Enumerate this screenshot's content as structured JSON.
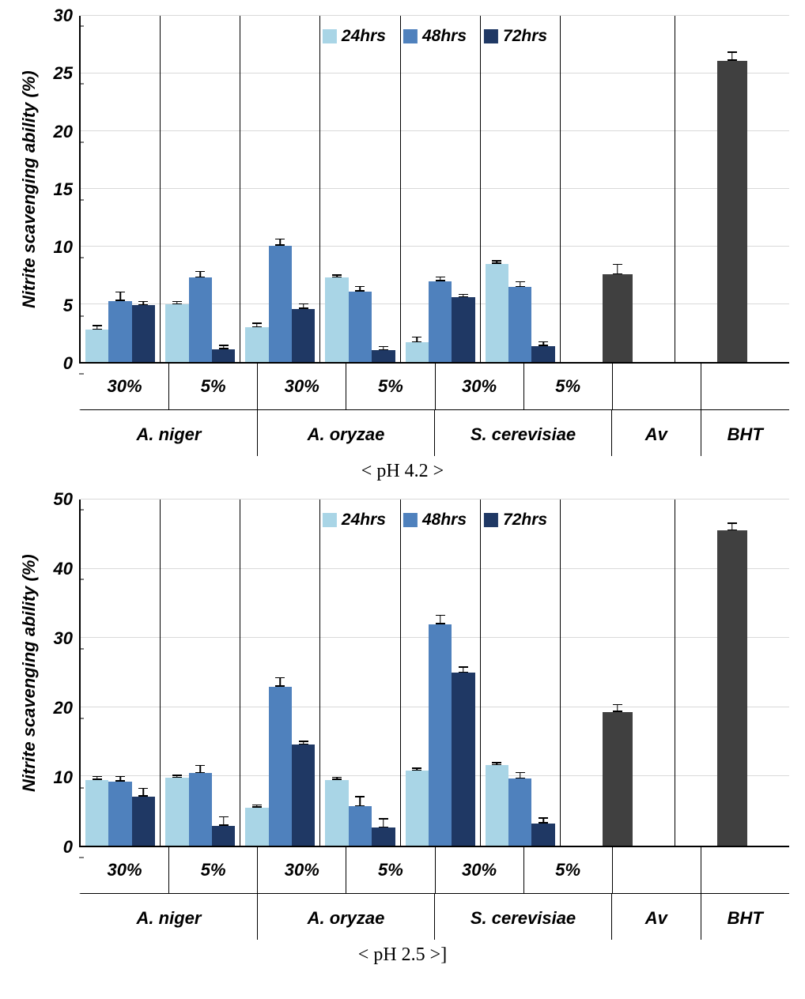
{
  "colors": {
    "s24": "#a9d5e6",
    "s48": "#4f81bd",
    "s72": "#1f3864",
    "control": "#404040",
    "grid": "#d9d9d9",
    "axis": "#000000",
    "bg": "#ffffff"
  },
  "legend": {
    "items": [
      {
        "label": "24hrs",
        "colorKey": "s24"
      },
      {
        "label": "48hrs",
        "colorKey": "s48"
      },
      {
        "label": "72hrs",
        "colorKey": "s72"
      }
    ]
  },
  "charts": [
    {
      "ylabel": "Nitrite scavenging ability (%)",
      "ylim": [
        0,
        30
      ],
      "ytick_step": 5,
      "caption": "< pH 4.2 >",
      "level1_labels": [
        "30%",
        "5%",
        "30%",
        "5%",
        "30%",
        "5%",
        "",
        ""
      ],
      "level2": [
        {
          "label": "A. niger",
          "span": 2
        },
        {
          "label": "A. oryzae",
          "span": 2
        },
        {
          "label": "S. cerevisiae",
          "span": 2
        },
        {
          "label": "Av",
          "span": 1
        },
        {
          "label": "BHT",
          "span": 1
        }
      ],
      "groups": [
        {
          "bars": [
            {
              "seriesKey": "s24",
              "value": 2.8,
              "err": 0.3
            },
            {
              "seriesKey": "s48",
              "value": 5.3,
              "err": 0.7
            },
            {
              "seriesKey": "s72",
              "value": 4.9,
              "err": 0.3
            }
          ]
        },
        {
          "bars": [
            {
              "seriesKey": "s24",
              "value": 5.0,
              "err": 0.2
            },
            {
              "seriesKey": "s48",
              "value": 7.3,
              "err": 0.5
            },
            {
              "seriesKey": "s72",
              "value": 1.1,
              "err": 0.3
            }
          ]
        },
        {
          "bars": [
            {
              "seriesKey": "s24",
              "value": 3.0,
              "err": 0.3
            },
            {
              "seriesKey": "s48",
              "value": 10.1,
              "err": 0.5
            },
            {
              "seriesKey": "s72",
              "value": 4.6,
              "err": 0.4
            }
          ]
        },
        {
          "bars": [
            {
              "seriesKey": "s24",
              "value": 7.3,
              "err": 0.2
            },
            {
              "seriesKey": "s48",
              "value": 6.1,
              "err": 0.4
            },
            {
              "seriesKey": "s72",
              "value": 1.0,
              "err": 0.3
            }
          ]
        },
        {
          "bars": [
            {
              "seriesKey": "s24",
              "value": 1.7,
              "err": 0.4
            },
            {
              "seriesKey": "s48",
              "value": 7.0,
              "err": 0.3
            },
            {
              "seriesKey": "s72",
              "value": 5.6,
              "err": 0.2
            }
          ]
        },
        {
          "bars": [
            {
              "seriesKey": "s24",
              "value": 8.5,
              "err": 0.2
            },
            {
              "seriesKey": "s48",
              "value": 6.5,
              "err": 0.4
            },
            {
              "seriesKey": "s72",
              "value": 1.4,
              "err": 0.3
            }
          ]
        },
        {
          "bars": [
            {
              "seriesKey": "control",
              "value": 7.6,
              "err": 0.8
            }
          ]
        },
        {
          "bars": [
            {
              "seriesKey": "control",
              "value": 26.1,
              "err": 0.7
            }
          ]
        }
      ]
    },
    {
      "ylabel": "Nitrite scavenging ability (%)",
      "ylim": [
        0,
        50
      ],
      "ytick_step": 10,
      "caption": "<  pH 2.5  >]",
      "level1_labels": [
        "30%",
        "5%",
        "30%",
        "5%",
        "30%",
        "5%",
        "",
        ""
      ],
      "level2": [
        {
          "label": "A. niger",
          "span": 2
        },
        {
          "label": "A. oryzae",
          "span": 2
        },
        {
          "label": "S. cerevisiae",
          "span": 2
        },
        {
          "label": "Av",
          "span": 1
        },
        {
          "label": "BHT",
          "span": 1
        }
      ],
      "groups": [
        {
          "bars": [
            {
              "seriesKey": "s24",
              "value": 9.5,
              "err": 0.4
            },
            {
              "seriesKey": "s48",
              "value": 9.3,
              "err": 0.6
            },
            {
              "seriesKey": "s72",
              "value": 7.1,
              "err": 1.1
            }
          ]
        },
        {
          "bars": [
            {
              "seriesKey": "s24",
              "value": 9.8,
              "err": 0.3
            },
            {
              "seriesKey": "s48",
              "value": 10.5,
              "err": 1.0
            },
            {
              "seriesKey": "s72",
              "value": 2.9,
              "err": 1.2
            }
          ]
        },
        {
          "bars": [
            {
              "seriesKey": "s24",
              "value": 5.5,
              "err": 0.3
            },
            {
              "seriesKey": "s48",
              "value": 23.0,
              "err": 1.2
            },
            {
              "seriesKey": "s72",
              "value": 14.6,
              "err": 0.4
            }
          ]
        },
        {
          "bars": [
            {
              "seriesKey": "s24",
              "value": 9.5,
              "err": 0.3
            },
            {
              "seriesKey": "s48",
              "value": 5.7,
              "err": 1.3
            },
            {
              "seriesKey": "s72",
              "value": 2.6,
              "err": 1.2
            }
          ]
        },
        {
          "bars": [
            {
              "seriesKey": "s24",
              "value": 10.8,
              "err": 0.3
            },
            {
              "seriesKey": "s48",
              "value": 32.0,
              "err": 1.2
            },
            {
              "seriesKey": "s72",
              "value": 25.0,
              "err": 0.7
            }
          ]
        },
        {
          "bars": [
            {
              "seriesKey": "s24",
              "value": 11.6,
              "err": 0.3
            },
            {
              "seriesKey": "s48",
              "value": 9.7,
              "err": 0.8
            },
            {
              "seriesKey": "s72",
              "value": 3.2,
              "err": 0.7
            }
          ]
        },
        {
          "bars": [
            {
              "seriesKey": "control",
              "value": 19.3,
              "err": 1.0
            }
          ]
        },
        {
          "bars": [
            {
              "seriesKey": "control",
              "value": 45.5,
              "err": 1.0
            }
          ]
        }
      ]
    }
  ]
}
